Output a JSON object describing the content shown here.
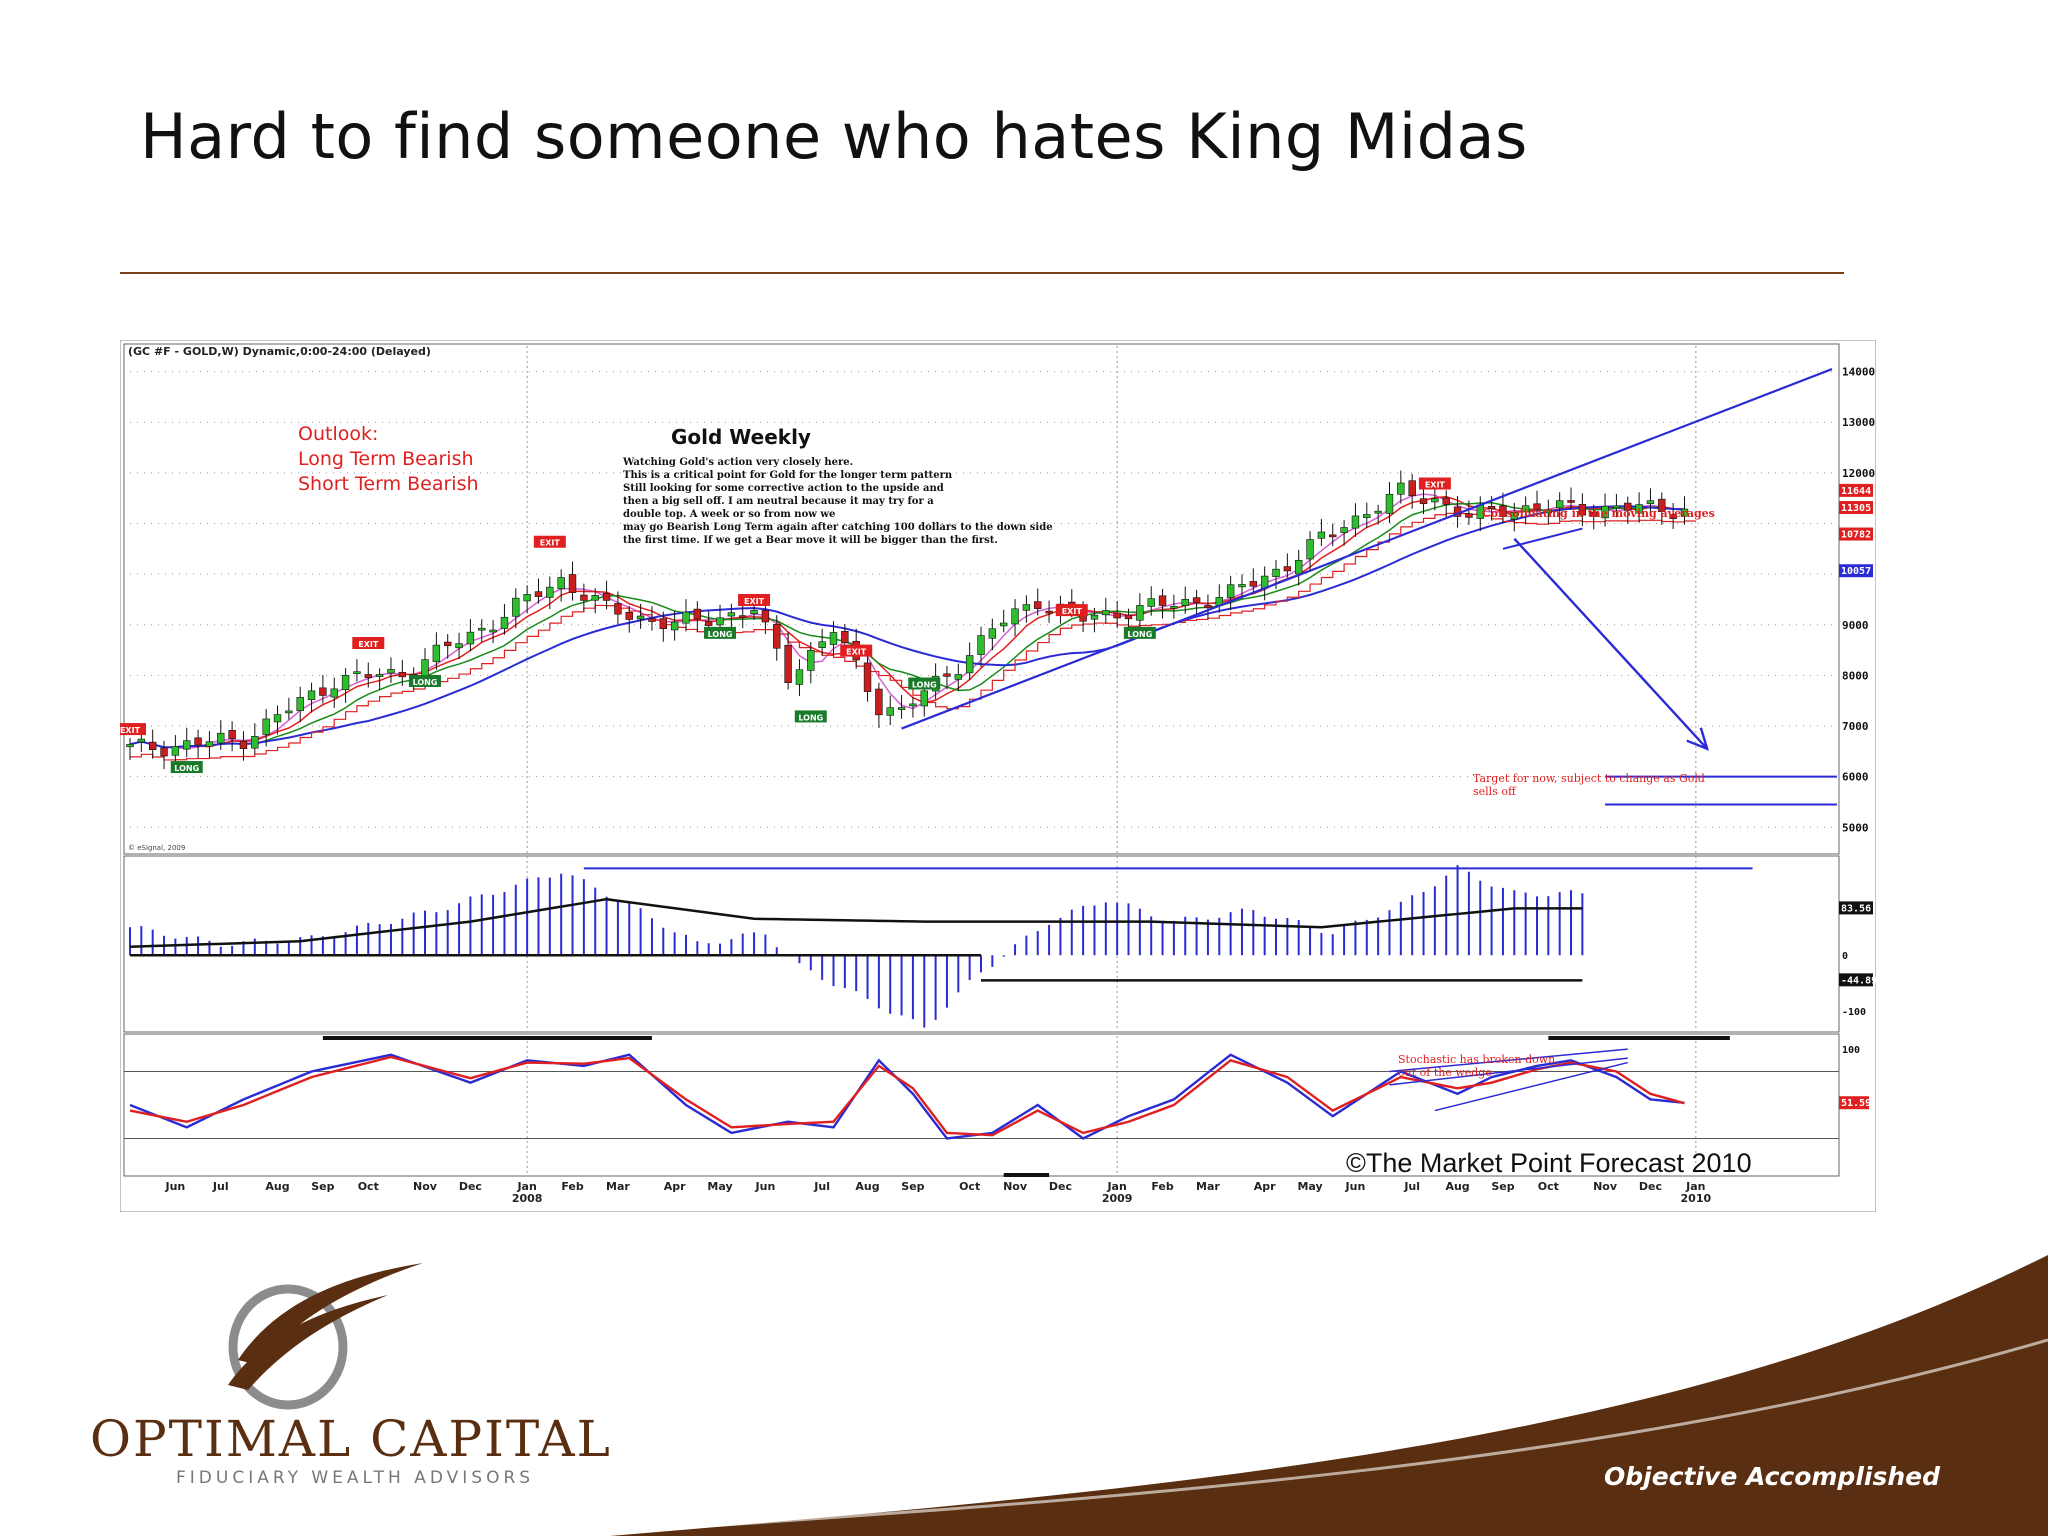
{
  "slide": {
    "title": "Hard to find someone who hates King Midas",
    "company_name": "OPTIMAL CAPITAL",
    "company_sub": "FIDUCIARY WEALTH ADVISORS",
    "tagline": "Objective Accomplished"
  },
  "colors": {
    "brand_brown": "#5a2e10",
    "annotation_red": "#e02020",
    "trend_blue": "#2b2bd6",
    "ma_green": "#1a8a1a",
    "bull_candle": "#2dbd2d",
    "bear_candle": "#c81e1e"
  },
  "chart_data": [
    {
      "type": "candlestick",
      "header": "(GC #F - GOLD,W) Dynamic,0:00-24:00 (Delayed)",
      "title": "Gold Weekly",
      "outlook": [
        "Outlook:",
        "Long Term Bearish",
        "Short Term Bearish"
      ],
      "commentary": [
        "Watching Gold's action very closely here.",
        "This is a critical point for Gold for the longer term pattern",
        "Still looking for some corrective action to the upside and",
        "then a big sell off. I am neutral because it may try for a",
        "double top. A week or so from now we",
        "may go Bearish Long Term again after catching 100 dollars to the down side",
        "the first time. If we get a Bear move it will be bigger than the first."
      ],
      "annotations": [
        "Consolidating in the moving averages",
        "Target for now, subject to change as Gold",
        "sells off"
      ],
      "copyright_small": "© eSignal, 2009",
      "y_ticks": [
        "14000",
        "13000",
        "12000",
        "9000",
        "8000",
        "7000",
        "6000",
        "5000"
      ],
      "y_tick_values": [
        14000,
        13000,
        12000,
        9000,
        8000,
        7000,
        6000,
        5000
      ],
      "price_tags": [
        {
          "label": "11644",
          "value": 11644,
          "color": "#e02020"
        },
        {
          "label": "11305",
          "value": 11305,
          "color": "#e02020"
        },
        {
          "label": "10782",
          "value": 10782,
          "color": "#e02020"
        },
        {
          "label": "10057",
          "value": 10057,
          "color": "#2b2bd6"
        }
      ],
      "ylim": [
        4650,
        14150
      ],
      "signals": [
        {
          "label": "EXIT",
          "week": 0,
          "value": 6900
        },
        {
          "label": "LONG",
          "week": 5,
          "value": 6150
        },
        {
          "label": "EXIT",
          "week": 21,
          "value": 8600
        },
        {
          "label": "LONG",
          "week": 26,
          "value": 7850
        },
        {
          "label": "EXIT",
          "week": 37,
          "value": 10600
        },
        {
          "label": "LONG",
          "week": 52,
          "value": 8800
        },
        {
          "label": "EXIT",
          "week": 55,
          "value": 9450
        },
        {
          "label": "LONG",
          "week": 60,
          "value": 7150
        },
        {
          "label": "EXIT",
          "week": 64,
          "value": 8450
        },
        {
          "label": "LONG",
          "week": 70,
          "value": 7800
        },
        {
          "label": "EXIT",
          "week": 83,
          "value": 9250
        },
        {
          "label": "LONG",
          "week": 89,
          "value": 8800
        },
        {
          "label": "EXIT",
          "week": 115,
          "value": 11750
        }
      ],
      "close_keypoints": [
        {
          "week": 0,
          "value": 6550
        },
        {
          "week": 6,
          "value": 6650
        },
        {
          "week": 10,
          "value": 6750
        },
        {
          "week": 18,
          "value": 7900
        },
        {
          "week": 24,
          "value": 8050
        },
        {
          "week": 30,
          "value": 8800
        },
        {
          "week": 38,
          "value": 9900
        },
        {
          "week": 42,
          "value": 9300
        },
        {
          "week": 48,
          "value": 9000
        },
        {
          "week": 55,
          "value": 9300
        },
        {
          "week": 58,
          "value": 8000
        },
        {
          "week": 62,
          "value": 8900
        },
        {
          "week": 66,
          "value": 7400
        },
        {
          "week": 68,
          "value": 7300
        },
        {
          "week": 72,
          "value": 8000
        },
        {
          "week": 76,
          "value": 8900
        },
        {
          "week": 80,
          "value": 9500
        },
        {
          "week": 84,
          "value": 9100
        },
        {
          "week": 88,
          "value": 9300
        },
        {
          "week": 92,
          "value": 9400
        },
        {
          "week": 97,
          "value": 9600
        },
        {
          "week": 102,
          "value": 10200
        },
        {
          "week": 107,
          "value": 11000
        },
        {
          "week": 112,
          "value": 11600
        },
        {
          "week": 115,
          "value": 11500
        },
        {
          "week": 118,
          "value": 11100
        },
        {
          "week": 121,
          "value": 11300
        }
      ],
      "target_levels": [
        6000,
        5450
      ],
      "trendline": [
        {
          "week": 68,
          "value": 6950
        },
        {
          "week": 150,
          "value": 14050
        }
      ],
      "projected_arrow": [
        {
          "week": 122,
          "value": 10700
        },
        {
          "week": 139,
          "value": 6550
        }
      ]
    },
    {
      "type": "bar",
      "name": "oscillator",
      "y_ticks": [
        "0",
        "-100"
      ],
      "value_tags": [
        {
          "label": "83.56",
          "value": 83.56
        },
        {
          "label": "-44.89",
          "value": -44.89
        }
      ],
      "ylim": [
        -130,
        170
      ],
      "keypoints": [
        {
          "week": 0,
          "value": 50
        },
        {
          "week": 8,
          "value": 20
        },
        {
          "week": 16,
          "value": 30
        },
        {
          "week": 27,
          "value": 80
        },
        {
          "week": 38,
          "value": 150
        },
        {
          "week": 44,
          "value": 90
        },
        {
          "week": 50,
          "value": 20
        },
        {
          "week": 56,
          "value": 40
        },
        {
          "week": 59,
          "value": -20
        },
        {
          "week": 65,
          "value": -80
        },
        {
          "week": 70,
          "value": -130
        },
        {
          "week": 75,
          "value": -30
        },
        {
          "week": 81,
          "value": 60
        },
        {
          "week": 86,
          "value": 100
        },
        {
          "week": 92,
          "value": 60
        },
        {
          "week": 99,
          "value": 80
        },
        {
          "week": 106,
          "value": 40
        },
        {
          "week": 112,
          "value": 90
        },
        {
          "week": 117,
          "value": 155
        },
        {
          "week": 122,
          "value": 110
        }
      ],
      "signal_keypoints": [
        {
          "week": 0,
          "value": 15
        },
        {
          "week": 15,
          "value": 25
        },
        {
          "week": 30,
          "value": 60
        },
        {
          "week": 42,
          "value": 100
        },
        {
          "week": 55,
          "value": 65
        },
        {
          "week": 70,
          "value": 60
        },
        {
          "week": 90,
          "value": 60
        },
        {
          "week": 105,
          "value": 50
        },
        {
          "week": 122,
          "value": 83.56
        }
      ],
      "hline_zero": 0,
      "hline_lower": -44.89,
      "hline_upper": 155
    },
    {
      "type": "line",
      "name": "stochastic",
      "y_ticks": [
        "100"
      ],
      "value_tags": [
        {
          "label": "51.59",
          "value": 51.59
        }
      ],
      "annotation": [
        "Stochastic has broken down",
        "out of the wedge"
      ],
      "watermark": "©The Market Point Forecast 2010",
      "ylim": [
        -10,
        110
      ],
      "hlines": [
        80,
        20
      ],
      "series": [
        {
          "color": "#2b2bd6",
          "keypoints": [
            {
              "week": 0,
              "value": 50
            },
            {
              "week": 5,
              "value": 30
            },
            {
              "week": 10,
              "value": 55
            },
            {
              "week": 16,
              "value": 80
            },
            {
              "week": 23,
              "value": 95
            },
            {
              "week": 30,
              "value": 70
            },
            {
              "week": 35,
              "value": 90
            },
            {
              "week": 40,
              "value": 85
            },
            {
              "week": 44,
              "value": 95
            },
            {
              "week": 49,
              "value": 50
            },
            {
              "week": 53,
              "value": 25
            },
            {
              "week": 58,
              "value": 35
            },
            {
              "week": 62,
              "value": 30
            },
            {
              "week": 66,
              "value": 90
            },
            {
              "week": 69,
              "value": 60
            },
            {
              "week": 72,
              "value": 20
            },
            {
              "week": 76,
              "value": 25
            },
            {
              "week": 80,
              "value": 50
            },
            {
              "week": 84,
              "value": 20
            },
            {
              "week": 88,
              "value": 40
            },
            {
              "week": 92,
              "value": 55
            },
            {
              "week": 97,
              "value": 95
            },
            {
              "week": 102,
              "value": 70
            },
            {
              "week": 106,
              "value": 40
            },
            {
              "week": 112,
              "value": 80
            },
            {
              "week": 117,
              "value": 60
            },
            {
              "week": 120,
              "value": 75
            },
            {
              "week": 124,
              "value": 85
            },
            {
              "week": 127,
              "value": 90
            },
            {
              "week": 131,
              "value": 75
            },
            {
              "week": 134,
              "value": 55
            },
            {
              "week": 137,
              "value": 52
            }
          ]
        },
        {
          "color": "#e02020",
          "keypoints": [
            {
              "week": 0,
              "value": 45
            },
            {
              "week": 5,
              "value": 35
            },
            {
              "week": 10,
              "value": 50
            },
            {
              "week": 16,
              "value": 75
            },
            {
              "week": 23,
              "value": 93
            },
            {
              "week": 30,
              "value": 74
            },
            {
              "week": 35,
              "value": 88
            },
            {
              "week": 40,
              "value": 87
            },
            {
              "week": 44,
              "value": 92
            },
            {
              "week": 49,
              "value": 55
            },
            {
              "week": 53,
              "value": 30
            },
            {
              "week": 58,
              "value": 33
            },
            {
              "week": 62,
              "value": 35
            },
            {
              "week": 66,
              "value": 85
            },
            {
              "week": 69,
              "value": 65
            },
            {
              "week": 72,
              "value": 25
            },
            {
              "week": 76,
              "value": 23
            },
            {
              "week": 80,
              "value": 45
            },
            {
              "week": 84,
              "value": 25
            },
            {
              "week": 88,
              "value": 35
            },
            {
              "week": 92,
              "value": 50
            },
            {
              "week": 97,
              "value": 90
            },
            {
              "week": 102,
              "value": 75
            },
            {
              "week": 106,
              "value": 45
            },
            {
              "week": 112,
              "value": 75
            },
            {
              "week": 117,
              "value": 65
            },
            {
              "week": 120,
              "value": 70
            },
            {
              "week": 124,
              "value": 82
            },
            {
              "week": 127,
              "value": 88
            },
            {
              "week": 131,
              "value": 80
            },
            {
              "week": 134,
              "value": 60
            },
            {
              "week": 137,
              "value": 51.59
            }
          ]
        }
      ]
    }
  ],
  "x_axis": {
    "ticks": [
      {
        "label": "Jun",
        "week": 4
      },
      {
        "label": "Jul",
        "week": 8
      },
      {
        "label": "Aug",
        "week": 13
      },
      {
        "label": "Sep",
        "week": 17
      },
      {
        "label": "Oct",
        "week": 21
      },
      {
        "label": "Nov",
        "week": 26
      },
      {
        "label": "Dec",
        "week": 30
      },
      {
        "label": "Jan",
        "week": 35
      },
      {
        "label": "Feb",
        "week": 39
      },
      {
        "label": "Mar",
        "week": 43
      },
      {
        "label": "Apr",
        "week": 48
      },
      {
        "label": "May",
        "week": 52
      },
      {
        "label": "Jun",
        "week": 56
      },
      {
        "label": "Jul",
        "week": 61
      },
      {
        "label": "Aug",
        "week": 65
      },
      {
        "label": "Sep",
        "week": 69
      },
      {
        "label": "Oct",
        "week": 74
      },
      {
        "label": "Nov",
        "week": 78
      },
      {
        "label": "Dec",
        "week": 82
      },
      {
        "label": "Jan",
        "week": 87
      },
      {
        "label": "Feb",
        "week": 91
      },
      {
        "label": "Mar",
        "week": 95
      },
      {
        "label": "Apr",
        "week": 100
      },
      {
        "label": "May",
        "week": 104
      },
      {
        "label": "Jun",
        "week": 108
      },
      {
        "label": "Jul",
        "week": 113
      },
      {
        "label": "Aug",
        "week": 117
      },
      {
        "label": "Sep",
        "week": 121
      },
      {
        "label": "Oct",
        "week": 125
      },
      {
        "label": "Nov",
        "week": 130
      },
      {
        "label": "Dec",
        "week": 134
      },
      {
        "label": "Jan",
        "week": 138
      }
    ],
    "year_labels": [
      {
        "label": "2008",
        "week": 35
      },
      {
        "label": "2009",
        "week": 87
      },
      {
        "label": "2010",
        "week": 138
      }
    ],
    "xlim": [
      0,
      150
    ]
  }
}
